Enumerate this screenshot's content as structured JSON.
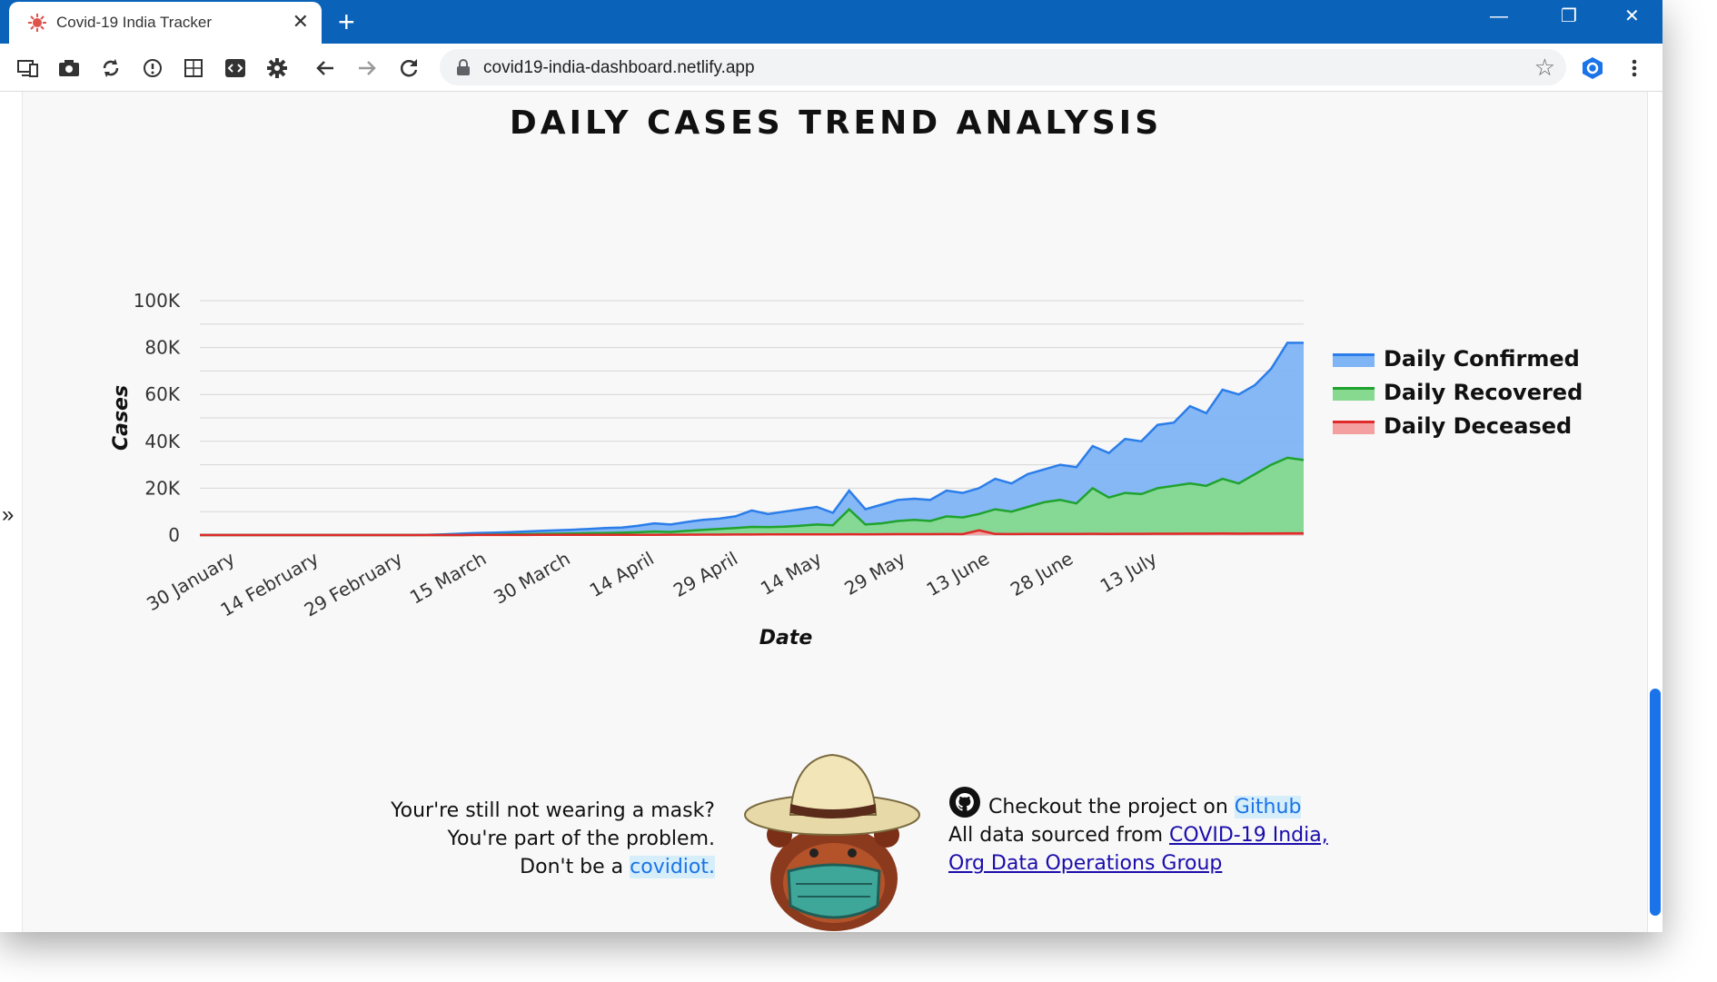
{
  "browser": {
    "tab_title": "Covid-19 India Tracker",
    "tab_close": "✕",
    "new_tab": "+",
    "url": "covid19-india-dashboard.netlify.app",
    "window_minimize": "—",
    "window_restore": "❐",
    "window_close": "✕",
    "bookmark_star": "☆",
    "accent": "#0b63b9"
  },
  "toolbar_icons": [
    "device-toggle-icon",
    "camera-icon",
    "sync-icon",
    "info-icon",
    "grid-icon",
    "code-icon",
    "settings-icon",
    "back-icon",
    "forward-icon",
    "reload-icon",
    "extension-icon",
    "menu-icon"
  ],
  "page": {
    "title": "DAILY CASES TREND ANALYSIS",
    "expand_label": "»"
  },
  "chart_data": {
    "type": "area",
    "xlabel": "Date",
    "ylabel": "Cases",
    "ylim": [
      0,
      100000
    ],
    "y_ticks": [
      "0",
      "20K",
      "40K",
      "60K",
      "80K",
      "100K"
    ],
    "x_ticks": [
      "30 January",
      "14 February",
      "29 February",
      "15 March",
      "30 March",
      "14 April",
      "29 April",
      "14 May",
      "29 May",
      "13 June",
      "28 June",
      "13 July"
    ],
    "grid": true,
    "legend_position": "right",
    "series": [
      {
        "name": "Daily Confirmed",
        "color": "#2b7de9",
        "fill": "#7fb4f5",
        "values": [
          0,
          0,
          0,
          0,
          0,
          0,
          0,
          0,
          0,
          0,
          0,
          0,
          0,
          0,
          100,
          300,
          600,
          900,
          1000,
          1200,
          1500,
          1800,
          2000,
          2300,
          2600,
          3000,
          3200,
          4000,
          5000,
          4500,
          5600,
          6500,
          7000,
          8000,
          10500,
          9000,
          10000,
          11000,
          12000,
          9500,
          19000,
          11000,
          13000,
          15000,
          15500,
          15000,
          19000,
          18000,
          20000,
          24000,
          22000,
          26000,
          28000,
          30000,
          29000,
          38000,
          35000,
          41000,
          40000,
          47000,
          48000,
          55000,
          52000,
          62000,
          60000,
          64000,
          71000,
          82000,
          82000
        ]
      },
      {
        "name": "Daily Recovered",
        "color": "#1fa32e",
        "fill": "#86d98f",
        "values": [
          0,
          0,
          0,
          0,
          0,
          0,
          0,
          0,
          0,
          0,
          0,
          0,
          0,
          0,
          0,
          0,
          0,
          100,
          200,
          300,
          400,
          500,
          600,
          700,
          800,
          900,
          1000,
          1200,
          1500,
          1300,
          1800,
          2200,
          2600,
          3000,
          3500,
          3400,
          3600,
          4000,
          4500,
          4200,
          11000,
          4500,
          5000,
          6000,
          6500,
          6000,
          8000,
          7500,
          9000,
          11000,
          10000,
          12000,
          14000,
          15000,
          13500,
          20000,
          16000,
          18000,
          17500,
          20000,
          21000,
          22000,
          21000,
          24000,
          22000,
          26000,
          30000,
          33000,
          32000
        ]
      },
      {
        "name": "Daily Deceased",
        "color": "#e02a2a",
        "fill": "#f5a0a0",
        "values": [
          0,
          0,
          0,
          0,
          0,
          0,
          0,
          0,
          0,
          0,
          0,
          0,
          0,
          0,
          0,
          0,
          10,
          20,
          30,
          40,
          50,
          60,
          70,
          80,
          90,
          100,
          100,
          120,
          130,
          150,
          170,
          180,
          200,
          220,
          250,
          270,
          280,
          300,
          320,
          300,
          350,
          320,
          350,
          380,
          400,
          380,
          420,
          400,
          2000,
          450,
          420,
          460,
          480,
          500,
          480,
          550,
          520,
          560,
          540,
          580,
          600,
          620,
          610,
          640,
          630,
          660,
          700,
          740,
          720
        ]
      }
    ]
  },
  "footer": {
    "mask_line1": "Your're still not wearing a mask?",
    "mask_line2": "You're part of the problem.",
    "mask_line3_prefix": "Don't be a ",
    "mask_link": "covidiot.",
    "github_prefix": "Checkout the project on ",
    "github_link": "Github",
    "source_prefix": "All data sourced from ",
    "source_link_line1": "COVID-19 India,",
    "source_link_line2": "Org Data Operations Group"
  }
}
